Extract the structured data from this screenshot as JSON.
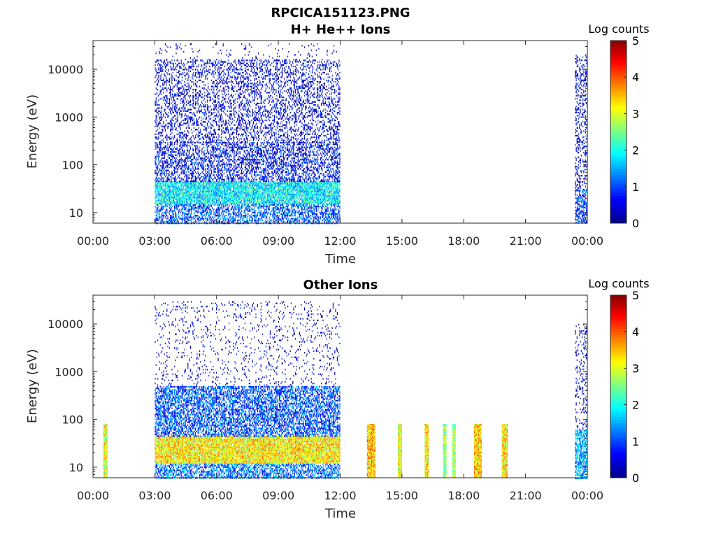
{
  "figure_title": "RPCICA151123.PNG",
  "colormap": [
    "#00008f",
    "#0000ff",
    "#0080ff",
    "#00ffff",
    "#80ff80",
    "#ffff00",
    "#ff8000",
    "#ff0000",
    "#800000"
  ],
  "chart_data": [
    {
      "type": "heatmap",
      "title": "H+ He++ Ions",
      "xlabel": "Time",
      "ylabel": "Energy (eV)",
      "xlim_hours": [
        0,
        24
      ],
      "ylim_eV": [
        6,
        40000
      ],
      "y_scale": "log",
      "x_tick_labels": [
        "00:00",
        "03:00",
        "06:00",
        "09:00",
        "12:00",
        "15:00",
        "18:00",
        "21:00",
        "00:00"
      ],
      "y_tick_values": [
        10,
        100,
        1000,
        10000
      ],
      "y_tick_labels": [
        "10",
        "100",
        "1000",
        "10000"
      ],
      "colorbar": {
        "label": "Log counts",
        "min": 0,
        "max": 5,
        "tick_labels": [
          "0",
          "1",
          "2",
          "3",
          "4",
          "5"
        ]
      },
      "grid": false,
      "regions": [
        {
          "t_start": 3.0,
          "t_end": 12.0,
          "e_min": 6,
          "e_max": 15,
          "level": 1.0,
          "density": 0.55
        },
        {
          "t_start": 3.0,
          "t_end": 12.0,
          "e_min": 15,
          "e_max": 45,
          "level": 1.8,
          "density": 0.9
        },
        {
          "t_start": 3.0,
          "t_end": 12.0,
          "e_min": 45,
          "e_max": 300,
          "level": 0.6,
          "density": 0.45
        },
        {
          "t_start": 3.0,
          "t_end": 12.0,
          "e_min": 300,
          "e_max": 16000,
          "level": 0.4,
          "density": 0.3
        },
        {
          "t_start": 3.0,
          "t_end": 12.0,
          "e_min": 16000,
          "e_max": 35000,
          "level": 0.2,
          "density": 0.05
        },
        {
          "t_start": 23.4,
          "t_end": 24.0,
          "e_min": 6,
          "e_max": 30,
          "level": 0.9,
          "density": 0.6
        },
        {
          "t_start": 23.4,
          "t_end": 24.0,
          "e_min": 30,
          "e_max": 20000,
          "level": 0.4,
          "density": 0.3
        }
      ]
    },
    {
      "type": "heatmap",
      "title": "Other Ions",
      "xlabel": "Time",
      "ylabel": "Energy (eV)",
      "xlim_hours": [
        0,
        24
      ],
      "ylim_eV": [
        6,
        40000
      ],
      "y_scale": "log",
      "x_tick_labels": [
        "00:00",
        "03:00",
        "06:00",
        "09:00",
        "12:00",
        "15:00",
        "18:00",
        "21:00",
        "00:00"
      ],
      "y_tick_values": [
        10,
        100,
        1000,
        10000
      ],
      "y_tick_labels": [
        "10",
        "100",
        "1000",
        "10000"
      ],
      "colorbar": {
        "label": "Log counts",
        "min": 0,
        "max": 5,
        "tick_labels": [
          "0",
          "1",
          "2",
          "3",
          "4",
          "5"
        ]
      },
      "grid": false,
      "regions": [
        {
          "t_start": 0.5,
          "t_end": 0.7,
          "e_min": 6,
          "e_max": 80,
          "level": 3.0,
          "density": 1.0
        },
        {
          "t_start": 3.0,
          "t_end": 12.0,
          "e_min": 6,
          "e_max": 12,
          "level": 1.2,
          "density": 0.6
        },
        {
          "t_start": 3.0,
          "t_end": 12.0,
          "e_min": 12,
          "e_max": 45,
          "level": 3.2,
          "density": 0.95
        },
        {
          "t_start": 3.0,
          "t_end": 12.0,
          "e_min": 45,
          "e_max": 500,
          "level": 1.0,
          "density": 0.6
        },
        {
          "t_start": 3.0,
          "t_end": 12.0,
          "e_min": 500,
          "e_max": 30000,
          "level": 0.3,
          "density": 0.08
        },
        {
          "t_start": 13.3,
          "t_end": 13.7,
          "e_min": 6,
          "e_max": 80,
          "level": 3.4,
          "density": 1.0
        },
        {
          "t_start": 14.8,
          "t_end": 15.0,
          "e_min": 6,
          "e_max": 80,
          "level": 3.0,
          "density": 1.0
        },
        {
          "t_start": 16.1,
          "t_end": 16.3,
          "e_min": 6,
          "e_max": 80,
          "level": 3.2,
          "density": 1.0
        },
        {
          "t_start": 17.0,
          "t_end": 17.15,
          "e_min": 6,
          "e_max": 80,
          "level": 2.6,
          "density": 1.0
        },
        {
          "t_start": 17.45,
          "t_end": 17.6,
          "e_min": 6,
          "e_max": 80,
          "level": 2.6,
          "density": 1.0
        },
        {
          "t_start": 18.5,
          "t_end": 18.85,
          "e_min": 6,
          "e_max": 80,
          "level": 3.4,
          "density": 1.0
        },
        {
          "t_start": 19.85,
          "t_end": 20.1,
          "e_min": 6,
          "e_max": 80,
          "level": 3.2,
          "density": 1.0
        },
        {
          "t_start": 23.4,
          "t_end": 24.0,
          "e_min": 6,
          "e_max": 60,
          "level": 1.5,
          "density": 0.7
        },
        {
          "t_start": 23.4,
          "t_end": 24.0,
          "e_min": 60,
          "e_max": 10000,
          "level": 0.3,
          "density": 0.2
        }
      ]
    }
  ]
}
